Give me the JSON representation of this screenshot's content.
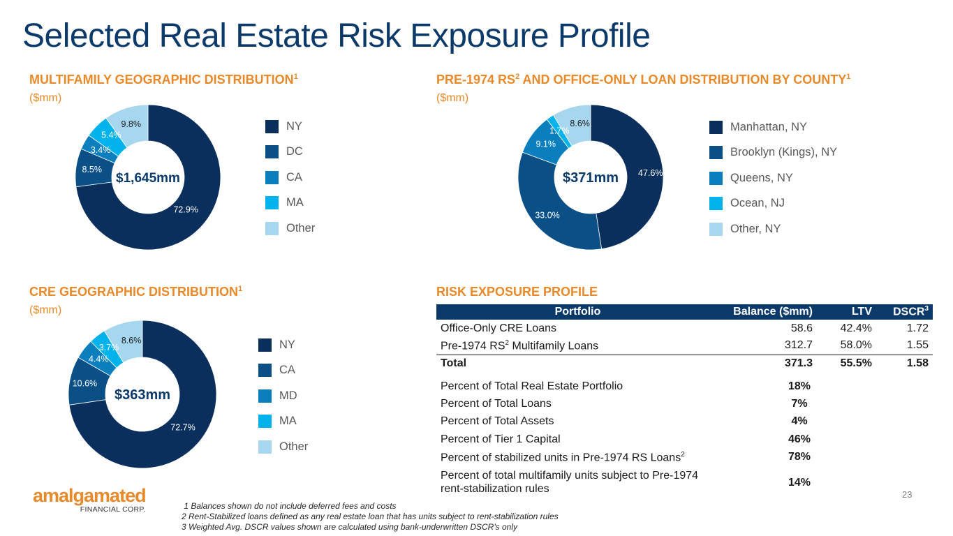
{
  "page": {
    "title": "Selected Real Estate Risk Exposure Profile",
    "page_number": "23"
  },
  "colors": {
    "navy": "#0b3a6a",
    "orange": "#e8892a"
  },
  "sections": {
    "mf": {
      "title": "MULTIFAMILY GEOGRAPHIC DISTRIBUTION",
      "sup": "1",
      "unit": "($mm)"
    },
    "pre": {
      "title_a": "PRE-1974 RS",
      "sup_a": "2",
      "title_b": " AND OFFICE-ONLY LOAN DISTRIBUTION BY COUNTY",
      "sup_b": "1",
      "unit": "($mm)"
    },
    "cre": {
      "title": "CRE GEOGRAPHIC DISTRIBUTION",
      "sup": "1",
      "unit": "($mm)"
    },
    "risk": {
      "title": "RISK EXPOSURE PROFILE"
    }
  },
  "chart_data": [
    {
      "id": "mf",
      "type": "pie",
      "donut": true,
      "title": "MULTIFAMILY GEOGRAPHIC DISTRIBUTION",
      "center_label": "$1,645mm",
      "slices": [
        {
          "label": "NY",
          "value": 72.9,
          "text": "72.9%",
          "color": "#0b2f5c",
          "label_color": "#ffffff"
        },
        {
          "label": "DC",
          "value": 8.5,
          "text": "8.5%",
          "color": "#0a4f86",
          "label_color": "#ffffff"
        },
        {
          "label": "CA",
          "value": 3.4,
          "text": "3.4%",
          "color": "#0b7fbe",
          "label_color": "#ffffff"
        },
        {
          "label": "MA",
          "value": 5.4,
          "text": "5.4%",
          "color": "#00b3ec",
          "label_color": "#ffffff"
        },
        {
          "label": "Other",
          "value": 9.8,
          "text": "9.8%",
          "color": "#a6d7ee",
          "label_color": "#1a1a1a"
        }
      ]
    },
    {
      "id": "pre",
      "type": "pie",
      "donut": true,
      "title": "PRE-1974 RS AND OFFICE-ONLY LOAN DISTRIBUTION BY COUNTY",
      "center_label": "$371mm",
      "slices": [
        {
          "label": "Manhattan, NY",
          "value": 47.6,
          "text": "47.6%",
          "color": "#0b2f5c",
          "label_color": "#ffffff"
        },
        {
          "label": "Brooklyn (Kings), NY",
          "value": 33.0,
          "text": "33.0%",
          "color": "#0a4f86",
          "label_color": "#ffffff"
        },
        {
          "label": "Queens, NY",
          "value": 9.1,
          "text": "9.1%",
          "color": "#0b7fbe",
          "label_color": "#ffffff"
        },
        {
          "label": "Ocean, NJ",
          "value": 1.7,
          "text": "1.7%",
          "color": "#00b3ec",
          "label_color": "#ffffff"
        },
        {
          "label": "Other, NY",
          "value": 8.6,
          "text": "8.6%",
          "color": "#a6d7ee",
          "label_color": "#1a1a1a"
        }
      ]
    },
    {
      "id": "cre",
      "type": "pie",
      "donut": true,
      "title": "CRE GEOGRAPHIC DISTRIBUTION",
      "center_label": "$363mm",
      "slices": [
        {
          "label": "NY",
          "value": 72.7,
          "text": "72.7%",
          "color": "#0b2f5c",
          "label_color": "#ffffff"
        },
        {
          "label": "CA",
          "value": 10.6,
          "text": "10.6%",
          "color": "#0a4f86",
          "label_color": "#ffffff"
        },
        {
          "label": "MD",
          "value": 4.4,
          "text": "4.4%",
          "color": "#0b7fbe",
          "label_color": "#ffffff"
        },
        {
          "label": "MA",
          "value": 3.7,
          "text": "3.7%",
          "color": "#00b3ec",
          "label_color": "#ffffff"
        },
        {
          "label": "Other",
          "value": 8.6,
          "text": "8.6%",
          "color": "#a6d7ee",
          "label_color": "#1a1a1a"
        }
      ]
    },
    {
      "id": "risk",
      "type": "table",
      "title": "RISK EXPOSURE PROFILE",
      "columns": [
        "Portfolio",
        "Balance ($mm)",
        "LTV",
        "DSCR"
      ],
      "dscr_sup": "3",
      "rows": [
        {
          "name": "Office-Only CRE Loans",
          "balance": "58.6",
          "ltv": "42.4%",
          "dscr": "1.72"
        },
        {
          "name_a": "Pre-1974 RS",
          "sup": "2",
          "name_b": " Multifamily Loans",
          "balance": "312.7",
          "ltv": "58.0%",
          "dscr": "1.55"
        }
      ],
      "total": {
        "name": "Total",
        "balance": "371.3",
        "ltv": "55.5%",
        "dscr": "1.58"
      },
      "percents": [
        {
          "label": "Percent of Total Real Estate Portfolio",
          "value": "18%"
        },
        {
          "label": "Percent of Total Loans",
          "value": "7%"
        },
        {
          "label": "Percent of Total Assets",
          "value": "4%"
        },
        {
          "label": "Percent of Tier 1 Capital",
          "value": "46%"
        },
        {
          "label": "Percent of stabilized units in Pre-1974 RS Loans",
          "sup": "2",
          "value": "78%"
        },
        {
          "label_line1": "Percent of total multifamily units subject to Pre-1974",
          "label_line2": "rent-stabilization rules",
          "value": "14%"
        }
      ]
    }
  ],
  "logo": {
    "name": "amalgamated",
    "sub": "FINANCIAL CORP."
  },
  "footnotes": [
    " 1 Balances shown do not include deferred fees and costs",
    "2 Rent-Stabilized loans defined as any real estate loan that has units subject to rent-stabilization rules",
    "3 Weighted Avg. DSCR values shown are calculated using bank-underwritten DSCR's only"
  ]
}
